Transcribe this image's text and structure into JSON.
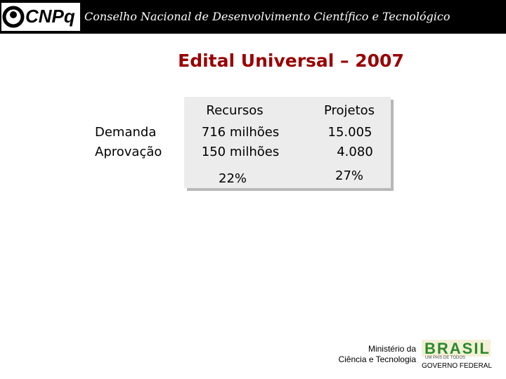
{
  "header": {
    "logo": "CNPq",
    "title": "Conselho Nacional de Desenvolvimento Científico e Tecnológico"
  },
  "slide": {
    "title": "Edital Universal – 2007"
  },
  "table": {
    "columns": [
      "Recursos",
      "Projetos"
    ],
    "rows": [
      {
        "label": "Demanda",
        "cells": [
          "716 milhões",
          "15.005"
        ]
      },
      {
        "label": "Aprovação",
        "cells": [
          "150 milhões",
          "4.080"
        ]
      }
    ],
    "totals": [
      "22%",
      "27%"
    ]
  },
  "footer": {
    "ministry": [
      "Ministério da",
      "Ciência e Tecnologia"
    ],
    "brand": "BRASIL",
    "motto": "UM PAÍS DE TODOS",
    "government": "GOVERNO FEDERAL"
  }
}
